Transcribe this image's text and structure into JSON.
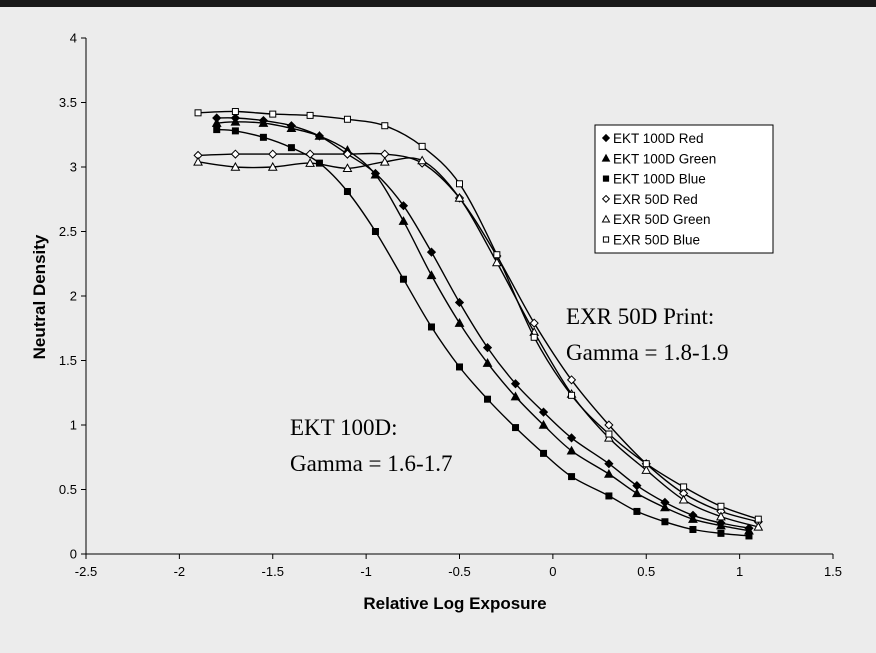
{
  "chart_data": {
    "type": "line",
    "title": "",
    "xlabel": "Relative Log Exposure",
    "ylabel": "Neutral Density",
    "xlim": [
      -2.5,
      1.5
    ],
    "ylim": [
      0,
      4
    ],
    "x_ticks": [
      "-2.5",
      "-2",
      "-1.5",
      "-1",
      "-0.5",
      "0",
      "0.5",
      "1",
      "1.5"
    ],
    "y_ticks": [
      "0",
      "0.5",
      "1",
      "1.5",
      "2",
      "2.5",
      "3",
      "3.5",
      "4"
    ],
    "grid": false,
    "legend_position": "top-right",
    "series": [
      {
        "name": "EKT 100D Red",
        "marker": "diamond-filled",
        "x": [
          -1.8,
          -1.7,
          -1.55,
          -1.4,
          -1.25,
          -1.1,
          -0.95,
          -0.8,
          -0.65,
          -0.5,
          -0.35,
          -0.2,
          -0.05,
          0.1,
          0.3,
          0.45,
          0.6,
          0.75,
          0.9,
          1.05
        ],
        "y": [
          3.38,
          3.38,
          3.36,
          3.32,
          3.24,
          3.1,
          2.95,
          2.7,
          2.34,
          1.95,
          1.6,
          1.32,
          1.1,
          0.9,
          0.7,
          0.53,
          0.4,
          0.3,
          0.24,
          0.2
        ]
      },
      {
        "name": "EKT 100D Green",
        "marker": "triangle-filled",
        "x": [
          -1.8,
          -1.7,
          -1.55,
          -1.4,
          -1.25,
          -1.1,
          -0.95,
          -0.8,
          -0.65,
          -0.5,
          -0.35,
          -0.2,
          -0.05,
          0.1,
          0.3,
          0.45,
          0.6,
          0.75,
          0.9,
          1.05
        ],
        "y": [
          3.34,
          3.35,
          3.34,
          3.3,
          3.24,
          3.13,
          2.94,
          2.58,
          2.16,
          1.79,
          1.48,
          1.22,
          1.0,
          0.8,
          0.62,
          0.47,
          0.36,
          0.27,
          0.22,
          0.18
        ]
      },
      {
        "name": "EKT 100D Blue",
        "marker": "square-filled",
        "x": [
          -1.8,
          -1.7,
          -1.55,
          -1.4,
          -1.25,
          -1.1,
          -0.95,
          -0.8,
          -0.65,
          -0.5,
          -0.35,
          -0.2,
          -0.05,
          0.1,
          0.3,
          0.45,
          0.6,
          0.75,
          0.9,
          1.05
        ],
        "y": [
          3.29,
          3.28,
          3.23,
          3.15,
          3.03,
          2.81,
          2.5,
          2.13,
          1.76,
          1.45,
          1.2,
          0.98,
          0.78,
          0.6,
          0.45,
          0.33,
          0.25,
          0.19,
          0.16,
          0.14
        ]
      },
      {
        "name": "EXR 50D Red",
        "marker": "diamond-open",
        "x": [
          -1.9,
          -1.7,
          -1.5,
          -1.3,
          -1.1,
          -0.9,
          -0.7,
          -0.5,
          -0.3,
          -0.1,
          0.1,
          0.3,
          0.5,
          0.7,
          0.9,
          1.1
        ],
        "y": [
          3.09,
          3.1,
          3.1,
          3.1,
          3.1,
          3.1,
          3.03,
          2.76,
          2.31,
          1.79,
          1.35,
          1.0,
          0.7,
          0.47,
          0.33,
          0.25
        ]
      },
      {
        "name": "EXR 50D Green",
        "marker": "triangle-open",
        "x": [
          -1.9,
          -1.7,
          -1.5,
          -1.3,
          -1.1,
          -0.9,
          -0.7,
          -0.5,
          -0.3,
          -0.1,
          0.1,
          0.3,
          0.5,
          0.7,
          0.9,
          1.1
        ],
        "y": [
          3.04,
          3.0,
          3.0,
          3.03,
          2.99,
          3.04,
          3.05,
          2.76,
          2.26,
          1.72,
          1.24,
          0.9,
          0.65,
          0.42,
          0.29,
          0.21
        ]
      },
      {
        "name": "EXR 50D Blue",
        "marker": "square-open",
        "x": [
          -1.9,
          -1.7,
          -1.5,
          -1.3,
          -1.1,
          -0.9,
          -0.7,
          -0.5,
          -0.3,
          -0.1,
          0.1,
          0.3,
          0.5,
          0.7,
          0.9,
          1.1
        ],
        "y": [
          3.42,
          3.43,
          3.41,
          3.4,
          3.37,
          3.32,
          3.16,
          2.87,
          2.32,
          1.68,
          1.23,
          0.93,
          0.7,
          0.52,
          0.37,
          0.27
        ]
      }
    ],
    "annotations": [
      {
        "lines": [
          "EXR 50D Print:",
          "Gamma = 1.8-1.9"
        ],
        "anchor": [
          0.08,
          1.75
        ]
      },
      {
        "lines": [
          "EKT 100D:",
          "Gamma = 1.6-1.7"
        ],
        "anchor": [
          -1.41,
          0.87
        ]
      }
    ]
  }
}
